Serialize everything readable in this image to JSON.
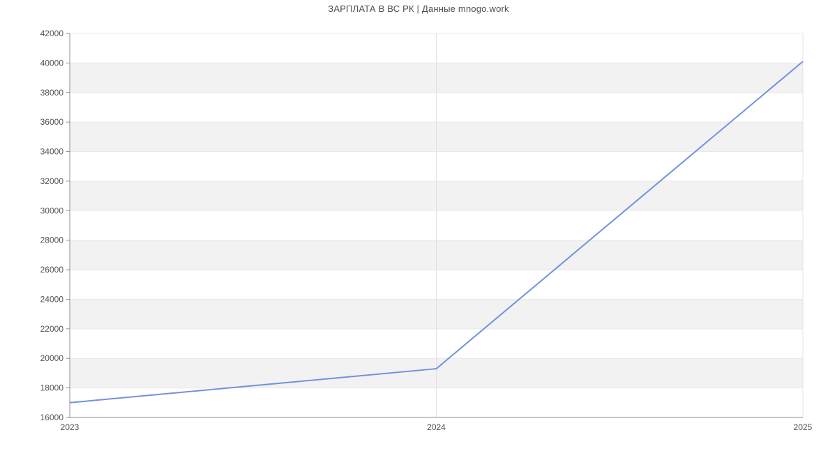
{
  "chart_data": {
    "type": "line",
    "title": "ЗАРПЛАТА В ВС РК | Данные mnogo.work",
    "categories": [
      "2023",
      "2024",
      "2025"
    ],
    "values": [
      17000,
      19300,
      40100
    ],
    "xlabel": "",
    "ylabel": "",
    "ylim": [
      16000,
      42000
    ],
    "ytick_step": 2000,
    "yticks": [
      16000,
      18000,
      20000,
      22000,
      24000,
      26000,
      28000,
      30000,
      32000,
      34000,
      36000,
      38000,
      40000,
      42000
    ],
    "grid": true,
    "legend": false,
    "legend_position": "none",
    "band_fill_intervals": [
      [
        18000,
        20000
      ],
      [
        22000,
        24000
      ],
      [
        26000,
        28000
      ],
      [
        30000,
        32000
      ],
      [
        34000,
        36000
      ],
      [
        38000,
        40000
      ]
    ],
    "colors": {
      "line": "#7191e0",
      "band": "#f2f2f2",
      "hgrid": "#e8e8e8",
      "vgrid": "#e0e0e0",
      "axis": "#8c8c8c",
      "tick_text": "#555555",
      "title_text": "#4d4d4d"
    }
  }
}
